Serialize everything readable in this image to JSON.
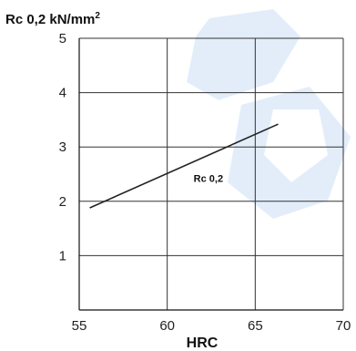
{
  "chart_data": {
    "type": "line",
    "ylabel": "Rc 0,2 kN/mm",
    "ylabel_superscript": "2",
    "xlabel": "HRC",
    "xlim": [
      55,
      70
    ],
    "ylim": [
      0,
      5
    ],
    "x_ticks": [
      "55",
      "60",
      "65",
      "70"
    ],
    "y_ticks": [
      "1",
      "2",
      "3",
      "4",
      "5"
    ],
    "grid": true,
    "series": [
      {
        "name": "Rc 0,2",
        "x": [
          55.6,
          66.3
        ],
        "y": [
          1.88,
          3.42
        ]
      }
    ],
    "annotation": {
      "text": "Rc 0,2",
      "x": 61.5,
      "y": 2.36
    },
    "colors": {
      "line": "#222222",
      "grid": "#333333",
      "watermark": "#2f7ddb"
    }
  }
}
